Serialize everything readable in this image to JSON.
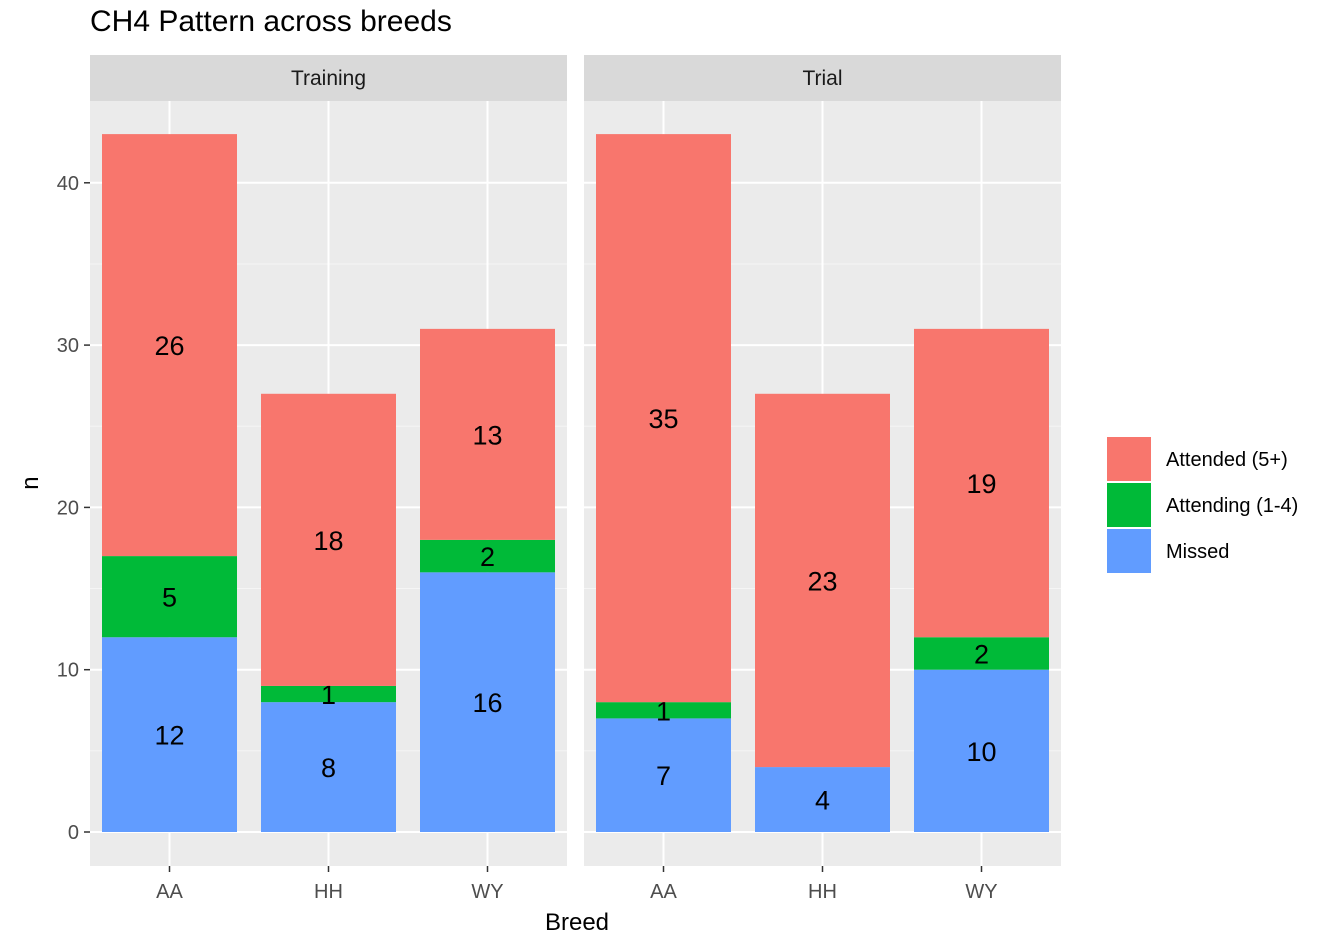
{
  "chart_data": {
    "type": "bar",
    "stacked": true,
    "title": "CH4 Pattern across breeds",
    "xlabel": "Breed",
    "ylabel": "n",
    "ylim": [
      0,
      44
    ],
    "yticks": [
      0,
      10,
      20,
      30,
      40
    ],
    "categories": [
      "AA",
      "HH",
      "WY"
    ],
    "grid": true,
    "legend_position": "right",
    "colors": {
      "Attended (5+)": "#F8766D",
      "Attending (1-4)": "#00BA38",
      "Missed": "#619CFF"
    },
    "stack_order": [
      "Missed",
      "Attending (1-4)",
      "Attended (5+)"
    ],
    "legend": [
      "Attended (5+)",
      "Attending (1-4)",
      "Missed"
    ],
    "panels": [
      {
        "name": "Training",
        "series": [
          {
            "name": "Missed",
            "values": [
              12,
              8,
              16
            ]
          },
          {
            "name": "Attending (1-4)",
            "values": [
              5,
              1,
              2
            ]
          },
          {
            "name": "Attended (5+)",
            "values": [
              26,
              18,
              13
            ]
          }
        ]
      },
      {
        "name": "Trial",
        "series": [
          {
            "name": "Missed",
            "values": [
              7,
              4,
              10
            ]
          },
          {
            "name": "Attending (1-4)",
            "values": [
              1,
              0,
              2
            ]
          },
          {
            "name": "Attended (5+)",
            "values": [
              35,
              23,
              19
            ]
          }
        ]
      }
    ]
  }
}
